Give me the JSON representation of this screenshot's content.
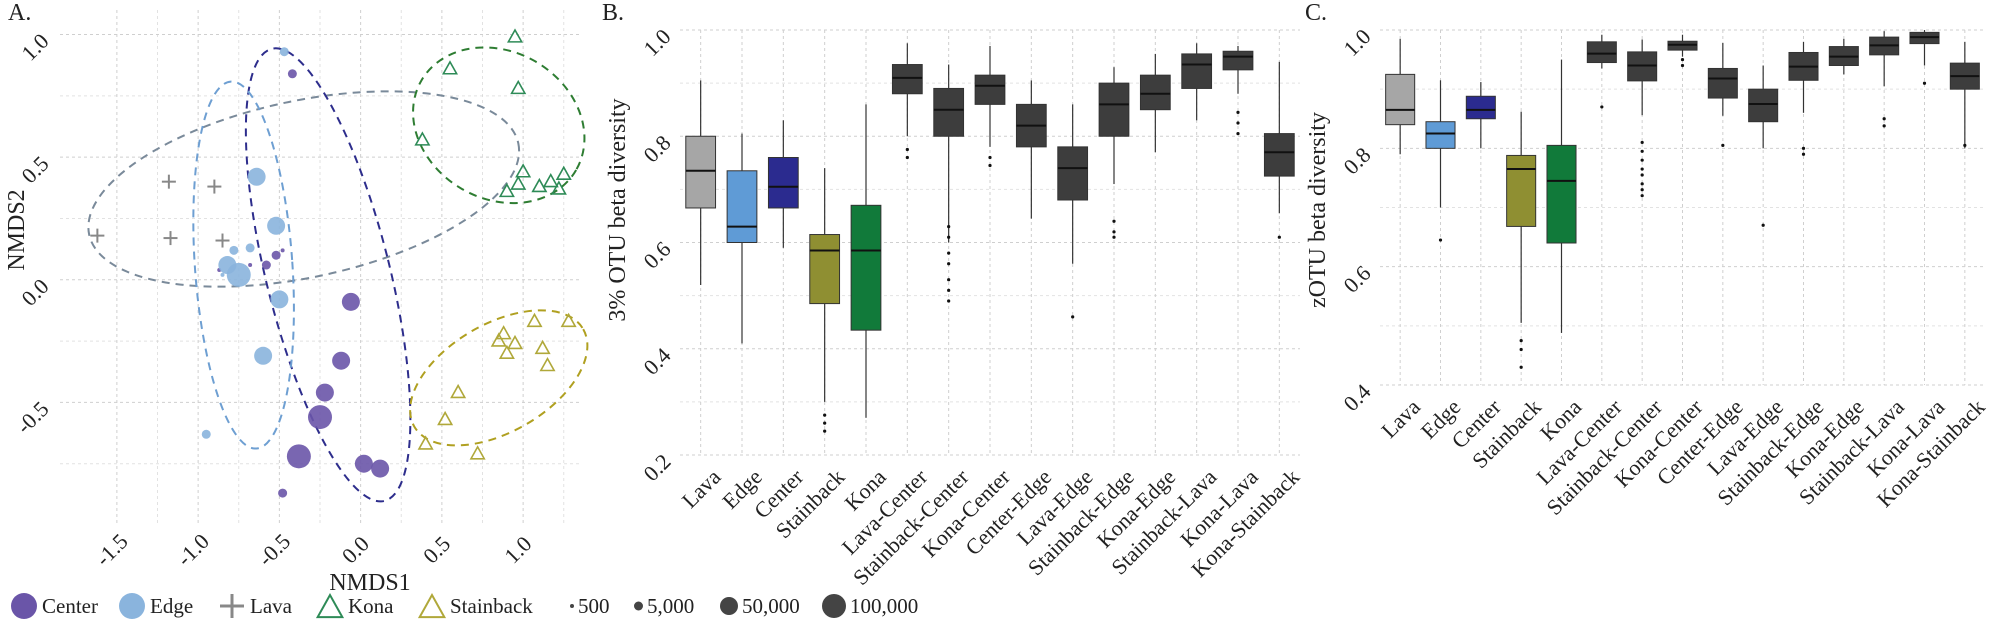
{
  "chart_data": [
    {
      "panel": "A.",
      "type": "scatter",
      "xlabel": "NMDS1",
      "ylabel": "NMDS2",
      "xlim": [
        -1.85,
        1.35
      ],
      "ylim": [
        -1.0,
        1.1
      ],
      "xticks": [
        -1.5,
        -1.0,
        -0.5,
        0.0,
        0.5,
        1.0
      ],
      "xtick_labels": [
        "-1.5",
        "-1.0",
        "-0.5",
        "0.0",
        "0.5",
        "1.0"
      ],
      "yticks": [
        -0.5,
        0.0,
        0.5,
        1.0
      ],
      "ytick_labels": [
        "-0.5",
        "0.0",
        "0.5",
        "1.0"
      ],
      "grid": true,
      "series": [
        {
          "name": "Center",
          "marker": "circle",
          "color": "#6a55a8",
          "points": [
            {
              "x": -0.42,
              "y": 0.84,
              "size": 5000
            },
            {
              "x": -0.68,
              "y": 0.06,
              "size": 500
            },
            {
              "x": -0.58,
              "y": 0.06,
              "size": 5000
            },
            {
              "x": -0.52,
              "y": 0.1,
              "size": 5000
            },
            {
              "x": -0.48,
              "y": 0.12,
              "size": 500
            },
            {
              "x": -0.06,
              "y": -0.09,
              "size": 50000
            },
            {
              "x": -0.12,
              "y": -0.33,
              "size": 50000
            },
            {
              "x": -0.22,
              "y": -0.46,
              "size": 50000
            },
            {
              "x": -0.25,
              "y": -0.56,
              "size": 100000
            },
            {
              "x": -0.38,
              "y": -0.72,
              "size": 100000
            },
            {
              "x": 0.02,
              "y": -0.75,
              "size": 50000
            },
            {
              "x": 0.12,
              "y": -0.77,
              "size": 50000
            },
            {
              "x": -0.48,
              "y": -0.87,
              "size": 5000
            },
            {
              "x": -0.87,
              "y": 0.04,
              "size": 500
            }
          ]
        },
        {
          "name": "Edge",
          "marker": "circle",
          "color": "#8ab4dd",
          "points": [
            {
              "x": -0.47,
              "y": 0.93,
              "size": 5000
            },
            {
              "x": -0.64,
              "y": 0.42,
              "size": 50000
            },
            {
              "x": -0.52,
              "y": 0.22,
              "size": 50000
            },
            {
              "x": -0.75,
              "y": 0.02,
              "size": 100000
            },
            {
              "x": -0.82,
              "y": 0.06,
              "size": 50000
            },
            {
              "x": -0.78,
              "y": 0.12,
              "size": 5000
            },
            {
              "x": -0.68,
              "y": 0.13,
              "size": 5000
            },
            {
              "x": -0.5,
              "y": -0.08,
              "size": 50000
            },
            {
              "x": -0.6,
              "y": -0.31,
              "size": 50000
            },
            {
              "x": -0.95,
              "y": -0.63,
              "size": 5000
            },
            {
              "x": -0.85,
              "y": 0.02,
              "size": 500
            }
          ]
        },
        {
          "name": "Lava",
          "marker": "plus",
          "color": "#888888",
          "points": [
            {
              "x": -1.18,
              "y": 0.4
            },
            {
              "x": -0.9,
              "y": 0.38
            },
            {
              "x": -1.62,
              "y": 0.18
            },
            {
              "x": -1.17,
              "y": 0.17
            },
            {
              "x": -0.85,
              "y": 0.16
            }
          ]
        },
        {
          "name": "Kona",
          "marker": "triangle",
          "color": "#2e8b57",
          "points": [
            {
              "x": 0.55,
              "y": 0.86
            },
            {
              "x": 0.95,
              "y": 0.99
            },
            {
              "x": 0.97,
              "y": 0.78
            },
            {
              "x": 0.38,
              "y": 0.57
            },
            {
              "x": 1.0,
              "y": 0.44
            },
            {
              "x": 0.97,
              "y": 0.39
            },
            {
              "x": 0.9,
              "y": 0.36
            },
            {
              "x": 1.1,
              "y": 0.38
            },
            {
              "x": 1.17,
              "y": 0.4
            },
            {
              "x": 1.25,
              "y": 0.43
            },
            {
              "x": 1.22,
              "y": 0.37
            }
          ]
        },
        {
          "name": "Stainback",
          "marker": "triangle",
          "color": "#b0a83a",
          "points": [
            {
              "x": 1.07,
              "y": -0.17
            },
            {
              "x": 1.28,
              "y": -0.17
            },
            {
              "x": 0.85,
              "y": -0.25
            },
            {
              "x": 0.88,
              "y": -0.22
            },
            {
              "x": 0.95,
              "y": -0.26
            },
            {
              "x": 1.12,
              "y": -0.28
            },
            {
              "x": 0.9,
              "y": -0.3
            },
            {
              "x": 1.15,
              "y": -0.35
            },
            {
              "x": 0.6,
              "y": -0.46
            },
            {
              "x": 0.52,
              "y": -0.57
            },
            {
              "x": 0.4,
              "y": -0.67
            },
            {
              "x": 0.72,
              "y": -0.71
            }
          ]
        }
      ],
      "ellipses": [
        {
          "group": "Lava",
          "color": "#7a8a9a",
          "center": [
            -0.35,
            0.37
          ],
          "rx": 1.35,
          "ry": 0.36,
          "angle_deg": 12
        },
        {
          "group": "Center",
          "color": "#2d2d8c",
          "center": [
            -0.2,
            0.02
          ],
          "rx": 0.38,
          "ry": 0.95,
          "angle_deg": 14
        },
        {
          "group": "Edge",
          "color": "#6e9fd2",
          "center": [
            -0.72,
            0.06
          ],
          "rx": 0.3,
          "ry": 0.75,
          "angle_deg": 4
        },
        {
          "group": "Kona",
          "color": "#2e7d32",
          "center": [
            0.85,
            0.63
          ],
          "rx": 0.55,
          "ry": 0.3,
          "angle_deg": -30
        },
        {
          "group": "Stainback",
          "color": "#b0a020",
          "center": [
            0.85,
            -0.4
          ],
          "rx": 0.6,
          "ry": 0.22,
          "angle_deg": 30
        }
      ]
    },
    {
      "panel": "B.",
      "type": "boxplot",
      "ylabel": "3% OTU beta diversity",
      "ylim": [
        0.2,
        1.0
      ],
      "yticks": [
        0.2,
        0.4,
        0.6,
        0.8,
        1.0
      ],
      "ytick_labels": [
        "0.2",
        "0.4",
        "0.6",
        "0.8",
        "1.0"
      ],
      "categories": [
        "Lava",
        "Edge",
        "Center",
        "Stainback",
        "Kona",
        "Lava-Center",
        "Stainback-Center",
        "Kona-Center",
        "Center-Edge",
        "Lava-Edge",
        "Stainback-Edge",
        "Kona-Edge",
        "Stainback-Lava",
        "Kona-Lava",
        "Kona-Stainback"
      ],
      "boxes": [
        {
          "min": 0.52,
          "q1": 0.665,
          "median": 0.735,
          "q3": 0.8,
          "max": 0.905,
          "color": "#a6a6a6",
          "outliers": []
        },
        {
          "min": 0.41,
          "q1": 0.6,
          "median": 0.63,
          "q3": 0.735,
          "max": 0.805,
          "color": "#5f9bd6",
          "outliers": []
        },
        {
          "min": 0.59,
          "q1": 0.665,
          "median": 0.705,
          "q3": 0.76,
          "max": 0.83,
          "color": "#2b2b8f",
          "outliers": []
        },
        {
          "min": 0.3,
          "q1": 0.485,
          "median": 0.585,
          "q3": 0.615,
          "max": 0.74,
          "color": "#8f8f32",
          "outliers": [
            0.245,
            0.26,
            0.275
          ]
        },
        {
          "min": 0.27,
          "q1": 0.435,
          "median": 0.585,
          "q3": 0.67,
          "max": 0.86,
          "color": "#117a3a",
          "outliers": []
        },
        {
          "min": 0.8,
          "q1": 0.88,
          "median": 0.91,
          "q3": 0.935,
          "max": 0.975,
          "color": "#3d3d3d",
          "outliers": [
            0.76,
            0.775
          ]
        },
        {
          "min": 0.6,
          "q1": 0.8,
          "median": 0.85,
          "q3": 0.89,
          "max": 0.935,
          "color": "#3d3d3d",
          "outliers": [
            0.49,
            0.51,
            0.53,
            0.56,
            0.58,
            0.61,
            0.63
          ]
        },
        {
          "min": 0.78,
          "q1": 0.86,
          "median": 0.895,
          "q3": 0.915,
          "max": 0.97,
          "color": "#3d3d3d",
          "outliers": [
            0.745,
            0.76
          ]
        },
        {
          "min": 0.645,
          "q1": 0.78,
          "median": 0.82,
          "q3": 0.86,
          "max": 0.905,
          "color": "#3d3d3d",
          "outliers": []
        },
        {
          "min": 0.56,
          "q1": 0.68,
          "median": 0.74,
          "q3": 0.78,
          "max": 0.86,
          "color": "#3d3d3d",
          "outliers": [
            0.46
          ]
        },
        {
          "min": 0.71,
          "q1": 0.8,
          "median": 0.86,
          "q3": 0.9,
          "max": 0.93,
          "color": "#3d3d3d",
          "outliers": [
            0.61,
            0.62,
            0.64
          ]
        },
        {
          "min": 0.77,
          "q1": 0.85,
          "median": 0.88,
          "q3": 0.915,
          "max": 0.955,
          "color": "#3d3d3d",
          "outliers": []
        },
        {
          "min": 0.83,
          "q1": 0.89,
          "median": 0.935,
          "q3": 0.955,
          "max": 0.975,
          "color": "#3d3d3d",
          "outliers": []
        },
        {
          "min": 0.88,
          "q1": 0.925,
          "median": 0.95,
          "q3": 0.96,
          "max": 0.97,
          "color": "#3d3d3d",
          "outliers": [
            0.805,
            0.825,
            0.845
          ]
        },
        {
          "min": 0.655,
          "q1": 0.725,
          "median": 0.77,
          "q3": 0.805,
          "max": 0.94,
          "color": "#3d3d3d",
          "outliers": [
            0.61
          ]
        }
      ]
    },
    {
      "panel": "C.",
      "type": "boxplot",
      "ylabel": "zOTU beta diversity",
      "ylim": [
        0.4,
        1.0
      ],
      "yticks": [
        0.4,
        0.6,
        0.8,
        1.0
      ],
      "ytick_labels": [
        "0.4",
        "0.6",
        "0.8",
        "1.0"
      ],
      "categories": [
        "Lava",
        "Edge",
        "Center",
        "Stainback",
        "Kona",
        "Lava-Center",
        "Stainback-Center",
        "Kona-Center",
        "Center-Edge",
        "Lava-Edge",
        "Stainback-Edge",
        "Kona-Edge",
        "Stainback-Lava",
        "Kona-Lava",
        "Kona-Stainback"
      ],
      "boxes": [
        {
          "min": 0.79,
          "q1": 0.84,
          "median": 0.865,
          "q3": 0.925,
          "max": 0.985,
          "color": "#a6a6a6",
          "outliers": []
        },
        {
          "min": 0.7,
          "q1": 0.8,
          "median": 0.825,
          "q3": 0.845,
          "max": 0.915,
          "color": "#5f9bd6",
          "outliers": [
            0.645
          ]
        },
        {
          "min": 0.8,
          "q1": 0.85,
          "median": 0.865,
          "q3": 0.888,
          "max": 0.912,
          "color": "#2b2b8f",
          "outliers": []
        },
        {
          "min": 0.505,
          "q1": 0.668,
          "median": 0.765,
          "q3": 0.788,
          "max": 0.862,
          "color": "#8f8f32",
          "outliers": [
            0.43,
            0.46,
            0.475
          ]
        },
        {
          "min": 0.488,
          "q1": 0.64,
          "median": 0.745,
          "q3": 0.805,
          "max": 0.95,
          "color": "#117a3a",
          "outliers": []
        },
        {
          "min": 0.935,
          "q1": 0.945,
          "median": 0.96,
          "q3": 0.98,
          "max": 0.992,
          "color": "#3d3d3d",
          "outliers": [
            0.87
          ]
        },
        {
          "min": 0.856,
          "q1": 0.914,
          "median": 0.94,
          "q3": 0.963,
          "max": 0.984,
          "color": "#3d3d3d",
          "outliers": [
            0.72,
            0.73,
            0.74,
            0.755,
            0.765,
            0.78,
            0.795,
            0.81
          ]
        },
        {
          "min": 0.955,
          "q1": 0.966,
          "median": 0.975,
          "q3": 0.981,
          "max": 0.992,
          "color": "#3d3d3d",
          "outliers": [
            0.94,
            0.95
          ]
        },
        {
          "min": 0.855,
          "q1": 0.885,
          "median": 0.918,
          "q3": 0.935,
          "max": 0.978,
          "color": "#3d3d3d",
          "outliers": [
            0.805
          ]
        },
        {
          "min": 0.8,
          "q1": 0.845,
          "median": 0.875,
          "q3": 0.9,
          "max": 0.94,
          "color": "#3d3d3d",
          "outliers": [
            0.67
          ]
        },
        {
          "min": 0.86,
          "q1": 0.915,
          "median": 0.938,
          "q3": 0.962,
          "max": 0.98,
          "color": "#3d3d3d",
          "outliers": [
            0.79,
            0.8
          ]
        },
        {
          "min": 0.925,
          "q1": 0.94,
          "median": 0.955,
          "q3": 0.972,
          "max": 0.985,
          "color": "#3d3d3d",
          "outliers": []
        },
        {
          "min": 0.905,
          "q1": 0.958,
          "median": 0.974,
          "q3": 0.988,
          "max": 0.998,
          "color": "#3d3d3d",
          "outliers": [
            0.838,
            0.85
          ]
        },
        {
          "min": 0.94,
          "q1": 0.977,
          "median": 0.988,
          "q3": 0.996,
          "max": 1.0,
          "color": "#3d3d3d",
          "outliers": [
            0.91
          ]
        },
        {
          "min": 0.8,
          "q1": 0.9,
          "median": 0.922,
          "q3": 0.944,
          "max": 0.98,
          "color": "#3d3d3d",
          "outliers": [
            0.805
          ]
        }
      ]
    }
  ],
  "legend": {
    "groups": [
      {
        "label": "Center",
        "shape": "circle",
        "color": "#6a55a8"
      },
      {
        "label": "Edge",
        "shape": "circle",
        "color": "#8ab4dd"
      },
      {
        "label": "Lava",
        "shape": "plus",
        "color": "#888888"
      },
      {
        "label": "Kona",
        "shape": "triangle",
        "color": "#2e8b57"
      },
      {
        "label": "Stainback",
        "shape": "triangle",
        "color": "#b0a83a"
      }
    ],
    "sizes": [
      {
        "label": "500",
        "value": 500
      },
      {
        "label": "5,000",
        "value": 5000
      },
      {
        "label": "50,000",
        "value": 50000
      },
      {
        "label": "100,000",
        "value": 100000
      }
    ]
  }
}
